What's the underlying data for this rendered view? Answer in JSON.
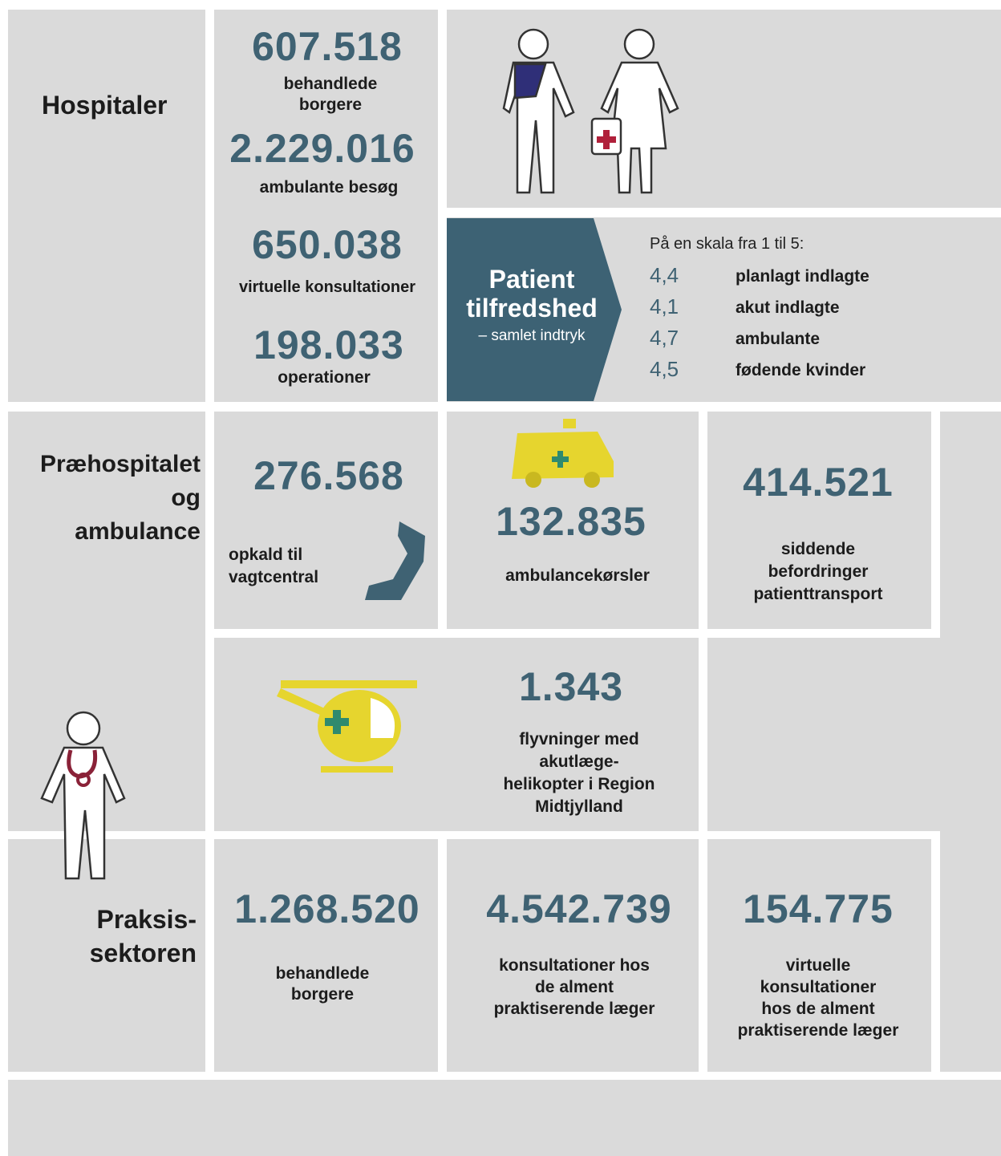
{
  "hospitals": {
    "heading": "Hospitaler",
    "stats": [
      {
        "number": "607.518",
        "label": "behandlede\nborgere"
      },
      {
        "number": "2.229.016",
        "label": "ambulante besøg"
      },
      {
        "number": "650.038",
        "label": "virtuelle konsultationer"
      },
      {
        "number": "198.033",
        "label": "operationer"
      }
    ],
    "satisfaction": {
      "title": "Patient\ntilfredshed",
      "subtitle": "– samlet indtryk",
      "scale_note": "På en skala fra 1 til 5:",
      "rows": [
        {
          "score": "4,4",
          "label": "planlagt indlagte"
        },
        {
          "score": "4,1",
          "label": "akut indlagte"
        },
        {
          "score": "4,7",
          "label": "ambulante"
        },
        {
          "score": "4,5",
          "label": "fødende kvinder"
        }
      ]
    }
  },
  "prehospital": {
    "heading": "Præhospitalet\nog\nambulance",
    "stats": [
      {
        "number": "276.568",
        "label": "opkald til\nvagtcentral"
      },
      {
        "number": "132.835",
        "label": "ambulancekørsler"
      },
      {
        "number": "414.521",
        "label": "siddende\nbefordringer\npatienttransport"
      },
      {
        "number": "1.343",
        "label": "flyvninger med\nakutlæge-\nhelikopter i Region\nMidtjylland"
      }
    ]
  },
  "practice": {
    "heading": "Praksis-\nsektoren",
    "stats": [
      {
        "number": "1.268.520",
        "label": "behandlede\nborgere"
      },
      {
        "number": "4.542.739",
        "label": "konsultationer hos\nde alment\npraktiserende læger"
      },
      {
        "number": "154.775",
        "label": "virtuelle\nkonsultationer\nhos de alment\npraktiserende læger"
      }
    ]
  }
}
